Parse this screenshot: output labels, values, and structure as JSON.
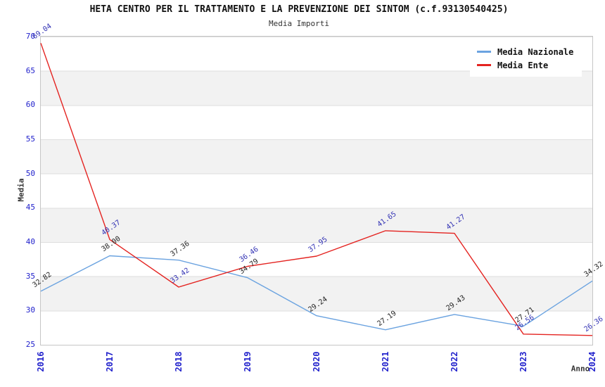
{
  "chart": {
    "title": "HETA CENTRO PER IL TRATTAMENTO E LA PREVENZIONE DEI SINTOM (c.f.93130540425)",
    "subtitle": "Media Importi"
  },
  "chart_data": {
    "type": "line",
    "title": "HETA CENTRO PER IL TRATTAMENTO E LA PREVENZIONE DEI SINTOM (c.f.93130540425)",
    "subtitle": "Media Importi",
    "xlabel": "Anno",
    "ylabel": "Media",
    "categories": [
      "2016",
      "2017",
      "2018",
      "2019",
      "2020",
      "2021",
      "2022",
      "2023",
      "2024"
    ],
    "series": [
      {
        "name": "Media Nazionale",
        "color": "#6ba3e0",
        "label_color": "#222222",
        "values": [
          32.82,
          38.0,
          37.36,
          34.79,
          29.24,
          27.19,
          29.43,
          27.71,
          34.32
        ]
      },
      {
        "name": "Media Ente",
        "color": "#e42320",
        "label_color": "#3232b4",
        "values": [
          69.04,
          40.37,
          33.42,
          36.46,
          37.95,
          41.65,
          41.27,
          26.56,
          26.36
        ]
      }
    ],
    "ylim": [
      25,
      70
    ],
    "ytick_step": 5,
    "value_label_decimals": 2,
    "grid": "horizontal-bands",
    "legend_position": "top-right",
    "colors": {
      "tick_label": "#2222cc",
      "band": "#f2f2f2",
      "gridline": "#dedede",
      "axis_title": "#333333"
    }
  }
}
